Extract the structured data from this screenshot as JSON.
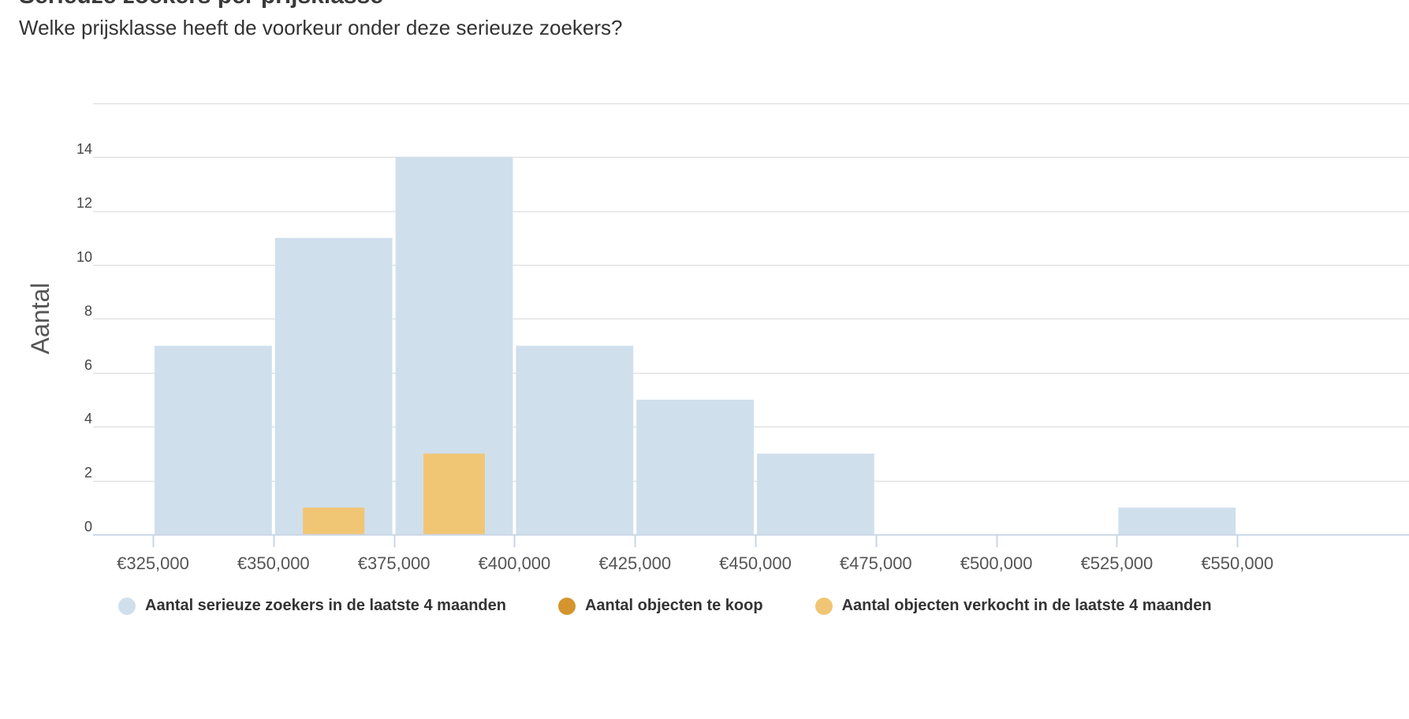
{
  "header": {
    "title": "Serieuze zoekers per prijsklasse",
    "subtitle": "Welke prijsklasse heeft de voorkeur onder deze serieuze zoekers?"
  },
  "colors": {
    "zoekers": "#d0dfec",
    "te_koop": "#d4952f",
    "verkocht": "#f0c674",
    "grid": "#e2e2e2",
    "axis": "#c9d6e6"
  },
  "chart_data": {
    "type": "bar",
    "x_edges": [
      325000,
      350000,
      375000,
      400000,
      425000,
      450000,
      475000,
      500000,
      525000,
      550000
    ],
    "x_tick_labels": [
      "€325,000",
      "€350,000",
      "€375,000",
      "€400,000",
      "€425,000",
      "€450,000",
      "€475,000",
      "€500,000",
      "€525,000",
      "€550,000"
    ],
    "series": [
      {
        "name": "Aantal serieuze zoekers in de laatste 4 maanden",
        "values": [
          7,
          11,
          14,
          7,
          5,
          3,
          0,
          0,
          1
        ]
      },
      {
        "name": "Aantal objecten te koop",
        "values": [
          0,
          0,
          0,
          0,
          0,
          0,
          0,
          0,
          0
        ]
      },
      {
        "name": "Aantal objecten verkocht in de laatste 4 maanden",
        "values": [
          0,
          1,
          3,
          0,
          0,
          0,
          0,
          0,
          0
        ]
      }
    ],
    "ylabel": "Aantal",
    "ylim": [
      0,
      16
    ],
    "y_ticks": [
      0,
      2,
      4,
      6,
      8,
      10,
      12,
      14
    ],
    "grid": true,
    "legend_position": "bottom"
  }
}
